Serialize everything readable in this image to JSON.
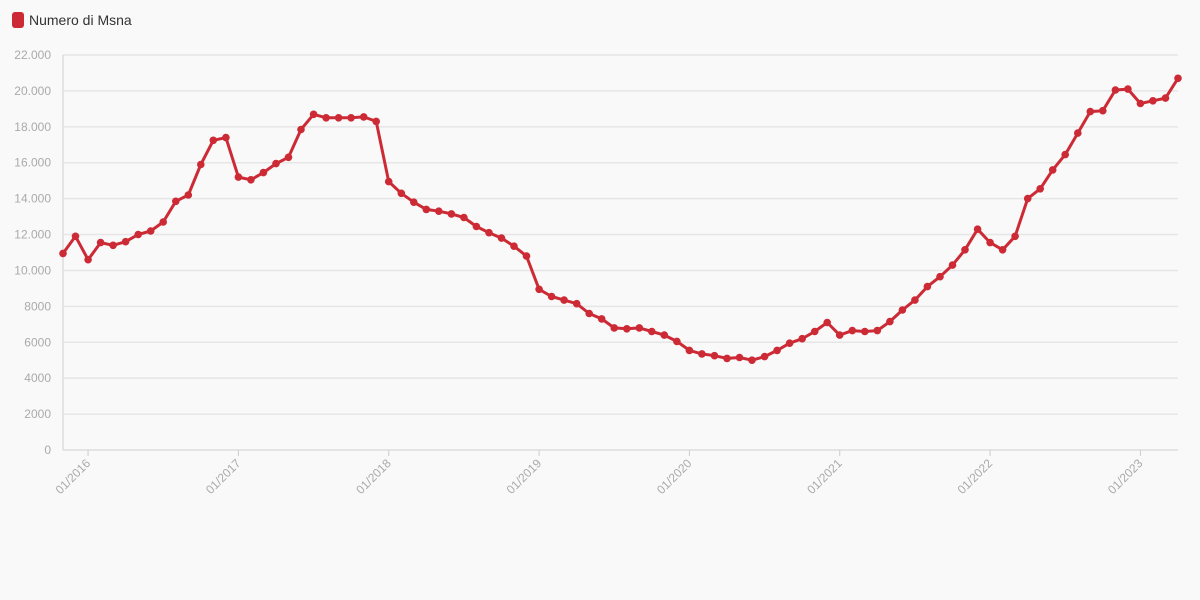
{
  "chart_data": {
    "type": "line",
    "title": "",
    "xlabel": "",
    "ylabel": "",
    "legend_position": "top-left",
    "grid": true,
    "color": "#cc2b36",
    "ylim": [
      0,
      22000
    ],
    "xlim": [
      "2015-11",
      "2023-04"
    ],
    "y_ticks": [
      0,
      2000,
      4000,
      6000,
      8000,
      10000,
      12000,
      14000,
      16000,
      18000,
      20000,
      22000
    ],
    "y_tick_labels": [
      "0",
      "2000",
      "4000",
      "6000",
      "8000",
      "10.000",
      "12.000",
      "14.000",
      "16.000",
      "18.000",
      "20.000",
      "22.000"
    ],
    "x_ticks": [
      "2016-01",
      "2017-01",
      "2018-01",
      "2019-01",
      "2020-01",
      "2021-01",
      "2022-01",
      "2023-01"
    ],
    "x_tick_labels": [
      "01/2016",
      "01/2017",
      "01/2018",
      "01/2019",
      "01/2020",
      "01/2021",
      "01/2022",
      "01/2023"
    ],
    "series": [
      {
        "name": "Numero di Msna",
        "x": [
          "2015-11",
          "2015-12",
          "2016-01",
          "2016-02",
          "2016-03",
          "2016-04",
          "2016-05",
          "2016-06",
          "2016-07",
          "2016-08",
          "2016-09",
          "2016-10",
          "2016-11",
          "2016-12",
          "2017-01",
          "2017-02",
          "2017-03",
          "2017-04",
          "2017-05",
          "2017-06",
          "2017-07",
          "2017-08",
          "2017-09",
          "2017-10",
          "2017-11",
          "2017-12",
          "2018-01",
          "2018-02",
          "2018-03",
          "2018-04",
          "2018-05",
          "2018-06",
          "2018-07",
          "2018-08",
          "2018-09",
          "2018-10",
          "2018-11",
          "2018-12",
          "2019-01",
          "2019-02",
          "2019-03",
          "2019-04",
          "2019-05",
          "2019-06",
          "2019-07",
          "2019-08",
          "2019-09",
          "2019-10",
          "2019-11",
          "2019-12",
          "2020-01",
          "2020-02",
          "2020-03",
          "2020-04",
          "2020-05",
          "2020-06",
          "2020-07",
          "2020-08",
          "2020-09",
          "2020-10",
          "2020-11",
          "2020-12",
          "2021-01",
          "2021-02",
          "2021-03",
          "2021-04",
          "2021-05",
          "2021-06",
          "2021-07",
          "2021-08",
          "2021-09",
          "2021-10",
          "2021-11",
          "2021-12",
          "2022-01",
          "2022-02",
          "2022-03",
          "2022-04",
          "2022-05",
          "2022-06",
          "2022-07",
          "2022-08",
          "2022-09",
          "2022-10",
          "2022-11",
          "2022-12",
          "2023-01",
          "2023-02",
          "2023-03",
          "2023-04"
        ],
        "values": [
          10950,
          11900,
          10600,
          11550,
          11400,
          11600,
          12000,
          12200,
          12700,
          13850,
          14200,
          15900,
          17250,
          17400,
          15200,
          15050,
          15450,
          15950,
          16300,
          17850,
          18700,
          18500,
          18500,
          18500,
          18550,
          18300,
          14950,
          14300,
          13800,
          13400,
          13300,
          13150,
          12950,
          12450,
          12100,
          11800,
          11350,
          10800,
          8950,
          8550,
          8350,
          8150,
          7600,
          7300,
          6800,
          6750,
          6800,
          6600,
          6400,
          6050,
          5550,
          5350,
          5250,
          5100,
          5150,
          5000,
          5200,
          5550,
          5950,
          6200,
          6600,
          7100,
          6400,
          6650,
          6600,
          6650,
          7150,
          7800,
          8350,
          9100,
          9650,
          10300,
          11150,
          12300,
          11550,
          11150,
          11900,
          14000,
          14550,
          15600,
          16450,
          17650,
          18850,
          18900,
          20050,
          20100,
          19300,
          19450,
          19600,
          20700
        ]
      }
    ]
  }
}
